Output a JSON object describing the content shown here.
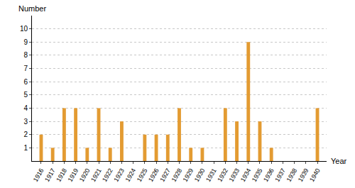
{
  "chart_data": {
    "type": "bar",
    "x_label": "Year",
    "y_label": "Number",
    "categories": [
      "1916",
      "1917",
      "1918",
      "1919",
      "1920",
      "1921",
      "1922",
      "1923",
      "1924",
      "1925",
      "1926",
      "1927",
      "1928",
      "1929",
      "1930",
      "1931",
      "1932",
      "1933",
      "1934",
      "1935",
      "1936",
      "1937",
      "1938",
      "1939",
      "1940"
    ],
    "values": [
      2,
      1,
      4,
      4,
      1,
      4,
      1,
      3,
      0,
      2,
      2,
      2,
      4,
      1,
      1,
      0,
      4,
      3,
      9,
      3,
      1,
      0,
      0,
      0,
      4
    ],
    "color": "#e39b32",
    "ylim": [
      0,
      11
    ],
    "yticks": [
      1,
      2,
      3,
      4,
      5,
      6,
      7,
      8,
      9,
      10
    ],
    "grid": true
  }
}
